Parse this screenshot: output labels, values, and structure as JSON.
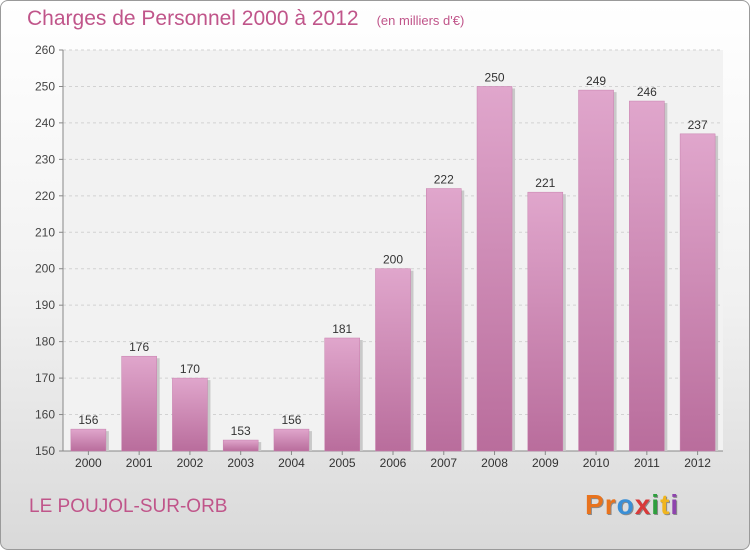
{
  "header": {
    "title": "Charges de Personnel 2000 à 2012",
    "subtitle": "(en milliers d'€)"
  },
  "footer": {
    "commune": "LE POUJOL-SUR-ORB",
    "brand": "Proxiti",
    "brand_colors": [
      "#e8731e",
      "#e8731e",
      "#3a8fd6",
      "#d83a3a",
      "#2e9e3e",
      "#f0b51e",
      "#8e44ad"
    ]
  },
  "colors": {
    "accent": "#c0558a",
    "bar_top": "#e0a6cc",
    "bar_bottom": "#b96d9c"
  },
  "chart_data": {
    "type": "bar",
    "title": "Charges de Personnel 2000 à 2012",
    "subtitle": "(en milliers d'€)",
    "categories": [
      "2000",
      "2001",
      "2002",
      "2003",
      "2004",
      "2005",
      "2006",
      "2007",
      "2008",
      "2009",
      "2010",
      "2011",
      "2012"
    ],
    "values": [
      156,
      176,
      170,
      153,
      156,
      181,
      200,
      222,
      250,
      221,
      249,
      246,
      237
    ],
    "ylim": [
      150,
      260
    ],
    "yticks": [
      150,
      160,
      170,
      180,
      190,
      200,
      210,
      220,
      230,
      240,
      250,
      260
    ],
    "grid": true,
    "data_labels": true
  }
}
